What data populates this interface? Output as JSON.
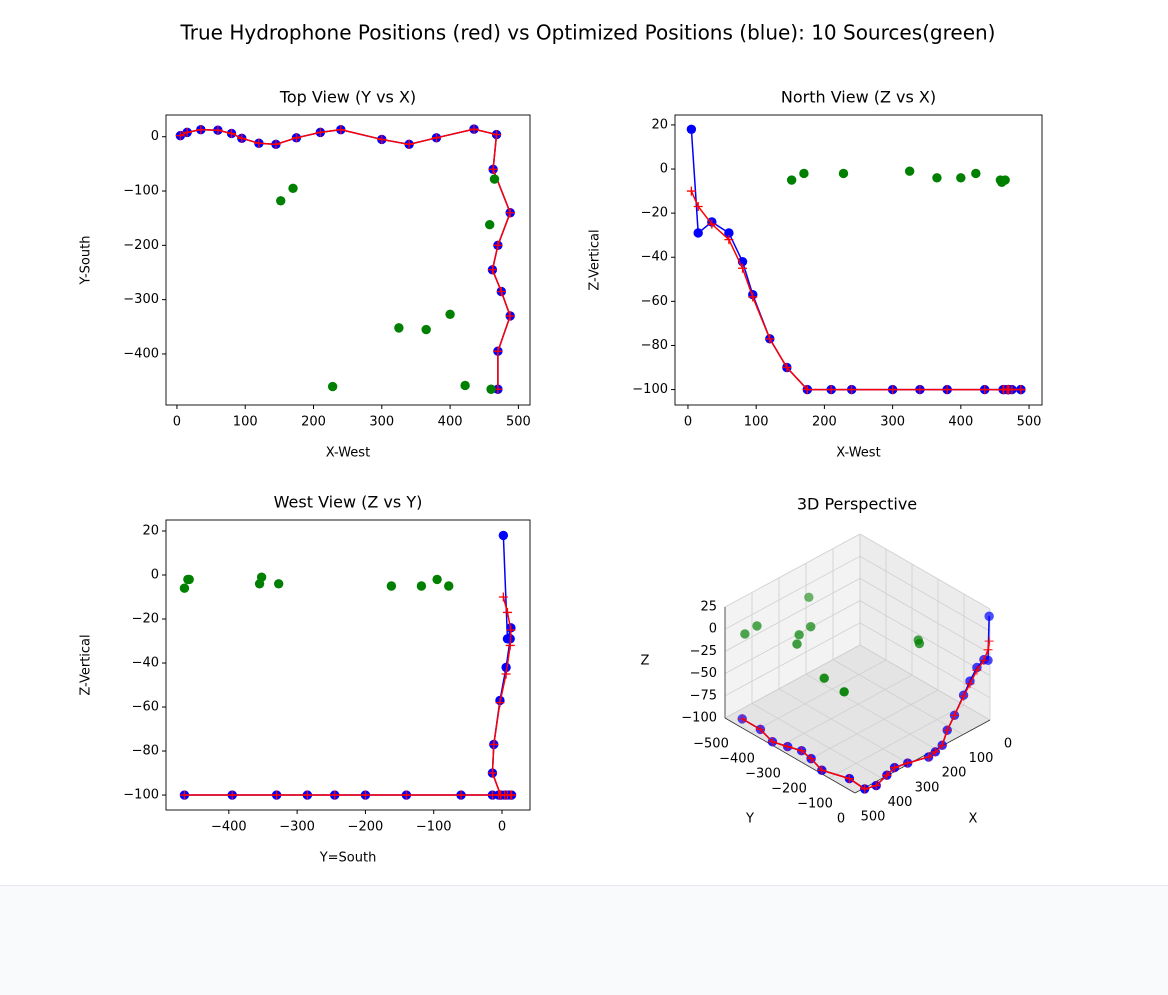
{
  "title": "True Hydrophone Positions (red) vs Optimized Positions (blue): 10 Sources(green)",
  "chart_data": [
    {
      "type": "line",
      "title": "Top View (Y vs X)",
      "x_label": "X-West",
      "y_label": "Y-South",
      "xlim": [
        -16,
        517
      ],
      "ylim": [
        -494,
        40
      ],
      "xticks": [
        0,
        100,
        200,
        300,
        400,
        500
      ],
      "yticks": [
        {
          "value": -400,
          "label": "−400"
        },
        {
          "value": -300,
          "label": "−300"
        },
        {
          "value": -200,
          "label": "−200"
        },
        {
          "value": -100,
          "label": "−100"
        },
        0
      ],
      "series": [
        {
          "color": "#0000ff",
          "marker": "o",
          "linestyle": "-",
          "x": [
            5,
            15,
            35,
            60,
            80,
            95,
            120,
            145,
            175,
            210,
            240,
            300,
            340,
            380,
            435,
            468,
            463,
            488,
            470,
            462,
            475,
            488,
            470,
            470
          ],
          "values": [
            2,
            8,
            13,
            12,
            6,
            -3,
            -12,
            -14,
            -2,
            8,
            13,
            -5,
            -14,
            -2,
            14,
            4,
            -60,
            -140,
            -200,
            -245,
            -285,
            -330,
            -395,
            -465
          ]
        },
        {
          "color": "#ff0000",
          "marker": "+",
          "linestyle": "-",
          "x": [
            5,
            15,
            35,
            60,
            80,
            95,
            120,
            145,
            175,
            210,
            240,
            300,
            340,
            380,
            435,
            468,
            463,
            488,
            470,
            462,
            475,
            488,
            470,
            470
          ],
          "values": [
            2,
            8,
            13,
            12,
            6,
            -3,
            -12,
            -14,
            -2,
            8,
            13,
            -5,
            -14,
            -2,
            14,
            4,
            -60,
            -140,
            -200,
            -245,
            -285,
            -330,
            -395,
            -465
          ]
        },
        {
          "color": "#008000",
          "marker": "o",
          "linestyle": "none",
          "x": [
            152,
            170,
            228,
            325,
            365,
            400,
            422,
            458,
            460,
            465
          ],
          "values": [
            -118,
            -95,
            -460,
            -352,
            -355,
            -327,
            -458,
            -162,
            -465,
            -78
          ]
        }
      ]
    },
    {
      "type": "line",
      "title": "North View (Z vs X)",
      "x_label": "X-West",
      "y_label": "Z-Vertical",
      "xlim": [
        -19,
        519
      ],
      "ylim": [
        -107,
        24.5
      ],
      "xticks": [
        0,
        100,
        200,
        300,
        400,
        500
      ],
      "yticks": [
        {
          "value": -100,
          "label": "−100"
        },
        {
          "value": -80,
          "label": "−80"
        },
        {
          "value": -60,
          "label": "−60"
        },
        {
          "value": -40,
          "label": "−40"
        },
        {
          "value": -20,
          "label": "−20"
        },
        0,
        20
      ],
      "series": [
        {
          "color": "#0000ff",
          "marker": "o",
          "linestyle": "-",
          "x": [
            5,
            15,
            35,
            60,
            80,
            95,
            120,
            145,
            175,
            210,
            240,
            300,
            340,
            380,
            435,
            468,
            463,
            488,
            470,
            462,
            475,
            488,
            470,
            470
          ],
          "values": [
            18,
            -29,
            -24,
            -29,
            -42,
            -57,
            -77,
            -90,
            -100,
            -100,
            -100,
            -100,
            -100,
            -100,
            -100,
            -100,
            -100,
            -100,
            -100,
            -100,
            -100,
            -100,
            -100,
            -100
          ]
        },
        {
          "color": "#ff0000",
          "marker": "+",
          "linestyle": "-",
          "x": [
            5,
            15,
            35,
            60,
            80,
            95,
            120,
            145,
            175,
            210,
            240,
            300,
            340,
            380,
            435,
            468,
            463,
            488,
            470,
            462,
            475,
            488,
            470,
            470
          ],
          "values": [
            -10,
            -17,
            -25,
            -32,
            -45,
            -58,
            -77,
            -90,
            -100,
            -100,
            -100,
            -100,
            -100,
            -100,
            -100,
            -100,
            -100,
            -100,
            -100,
            -100,
            -100,
            -100,
            -100,
            -100
          ]
        },
        {
          "color": "#008000",
          "marker": "o",
          "linestyle": "none",
          "x": [
            152,
            170,
            228,
            325,
            365,
            400,
            422,
            458,
            460,
            465
          ],
          "values": [
            -5,
            -2,
            -2,
            -1,
            -4,
            -4,
            -2,
            -5,
            -6,
            -5
          ]
        }
      ]
    },
    {
      "type": "line",
      "title": "West View (Z vs Y)",
      "x_label": "Y=South",
      "y_label": "Z-Vertical",
      "xlim": [
        -492,
        41
      ],
      "ylim": [
        -106.8,
        25
      ],
      "xticks": [
        {
          "value": -400,
          "label": "−400"
        },
        {
          "value": -300,
          "label": "−300"
        },
        {
          "value": -200,
          "label": "−200"
        },
        {
          "value": -100,
          "label": "−100"
        },
        0
      ],
      "yticks": [
        {
          "value": -100,
          "label": "−100"
        },
        {
          "value": -80,
          "label": "−80"
        },
        {
          "value": -60,
          "label": "−60"
        },
        {
          "value": -40,
          "label": "−40"
        },
        {
          "value": -20,
          "label": "−20"
        },
        0,
        20
      ],
      "series": [
        {
          "color": "#0000ff",
          "marker": "o",
          "linestyle": "-",
          "x": [
            2,
            8,
            13,
            12,
            6,
            -3,
            -12,
            -14,
            -2,
            8,
            13,
            -5,
            -14,
            -2,
            14,
            4,
            -60,
            -140,
            -200,
            -245,
            -285,
            -330,
            -395,
            -465
          ],
          "values": [
            18,
            -29,
            -24,
            -29,
            -42,
            -57,
            -77,
            -90,
            -100,
            -100,
            -100,
            -100,
            -100,
            -100,
            -100,
            -100,
            -100,
            -100,
            -100,
            -100,
            -100,
            -100,
            -100,
            -100
          ]
        },
        {
          "color": "#ff0000",
          "marker": "+",
          "linestyle": "-",
          "x": [
            2,
            8,
            13,
            12,
            6,
            -3,
            -12,
            -14,
            -2,
            8,
            13,
            -5,
            -14,
            -2,
            14,
            4,
            -60,
            -140,
            -200,
            -245,
            -285,
            -330,
            -395,
            -465
          ],
          "values": [
            -10,
            -17,
            -25,
            -32,
            -45,
            -58,
            -77,
            -90,
            -100,
            -100,
            -100,
            -100,
            -100,
            -100,
            -100,
            -100,
            -100,
            -100,
            -100,
            -100,
            -100,
            -100,
            -100,
            -100
          ]
        },
        {
          "color": "#008000",
          "marker": "o",
          "linestyle": "none",
          "x": [
            -118,
            -95,
            -460,
            -352,
            -355,
            -327,
            -458,
            -162,
            -465,
            -78
          ],
          "values": [
            -5,
            -2,
            -2,
            -1,
            -4,
            -4,
            -2,
            -5,
            -6,
            -5
          ]
        }
      ]
    },
    {
      "type": "scatter3d",
      "title": "3D Perspective",
      "x_label": "X",
      "y_label": "Y",
      "z_label": "Z",
      "xlim": [
        0,
        500
      ],
      "ylim": [
        -500,
        0
      ],
      "zlim": [
        -100,
        25
      ],
      "xticks": [
        0,
        100,
        200,
        300,
        400,
        500
      ],
      "yticks": [
        {
          "value": -500,
          "label": "−500"
        },
        {
          "value": -400,
          "label": "−400"
        },
        {
          "value": -300,
          "label": "−300"
        },
        {
          "value": -200,
          "label": "−200"
        },
        {
          "value": -100,
          "label": "−100"
        },
        0
      ],
      "zticks": [
        {
          "value": -100,
          "label": "−100"
        },
        {
          "value": -75,
          "label": "−75"
        },
        {
          "value": -50,
          "label": "−50"
        },
        {
          "value": -25,
          "label": "−25"
        },
        0,
        25
      ],
      "series": [
        {
          "color": "#0000ff",
          "marker": "o",
          "linestyle": "-",
          "x": [
            5,
            15,
            35,
            60,
            80,
            95,
            120,
            145,
            175,
            210,
            240,
            300,
            340,
            380,
            435,
            468,
            463,
            488,
            470,
            462,
            475,
            488,
            470,
            470
          ],
          "y": [
            2,
            8,
            13,
            12,
            6,
            -3,
            -12,
            -14,
            -2,
            8,
            13,
            -5,
            -14,
            -2,
            14,
            4,
            -60,
            -140,
            -200,
            -245,
            -285,
            -330,
            -395,
            -465
          ],
          "z": [
            18,
            -29,
            -24,
            -29,
            -42,
            -57,
            -77,
            -90,
            -100,
            -100,
            -100,
            -100,
            -100,
            -100,
            -100,
            -100,
            -100,
            -100,
            -100,
            -100,
            -100,
            -100,
            -100,
            -100
          ]
        },
        {
          "color": "#ff0000",
          "marker": "+",
          "linestyle": "-",
          "x": [
            5,
            15,
            35,
            60,
            80,
            95,
            120,
            145,
            175,
            210,
            240,
            300,
            340,
            380,
            435,
            468,
            463,
            488,
            470,
            462,
            475,
            488,
            470,
            470
          ],
          "y": [
            2,
            8,
            13,
            12,
            6,
            -3,
            -12,
            -14,
            -2,
            8,
            13,
            -5,
            -14,
            -2,
            14,
            4,
            -60,
            -140,
            -200,
            -245,
            -285,
            -330,
            -395,
            -465
          ],
          "z": [
            -10,
            -17,
            -25,
            -32,
            -45,
            -58,
            -77,
            -90,
            -100,
            -100,
            -100,
            -100,
            -100,
            -100,
            -100,
            -100,
            -100,
            -100,
            -100,
            -100,
            -100,
            -100,
            -100,
            -100
          ]
        },
        {
          "color": "#008000",
          "marker": "o",
          "linestyle": "none",
          "x": [
            152,
            170,
            228,
            325,
            365,
            400,
            422,
            458,
            460,
            465
          ],
          "y": [
            -118,
            -95,
            -460,
            -352,
            -355,
            -327,
            -458,
            -162,
            -465,
            -78
          ],
          "z": [
            -5,
            -2,
            -2,
            -1,
            -4,
            -4,
            -2,
            -5,
            -6,
            -5
          ]
        }
      ]
    }
  ]
}
